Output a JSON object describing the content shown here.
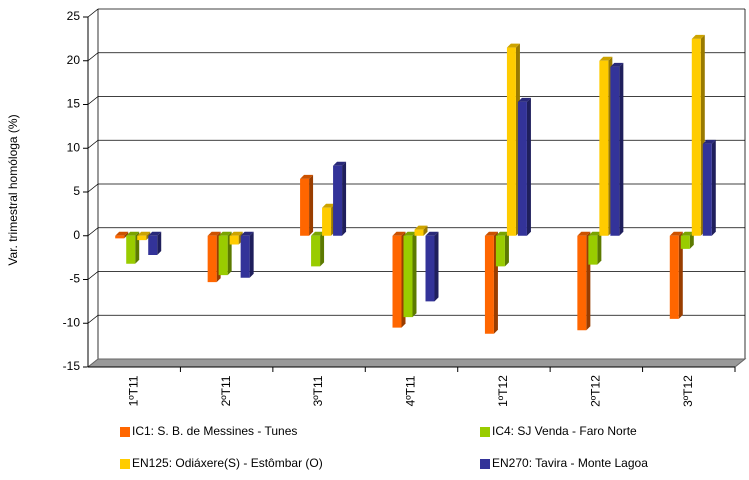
{
  "chart_data": {
    "type": "bar",
    "y_label": "Var. trimestral homóloga (%)",
    "categories": [
      "1ºT11",
      "2ºT11",
      "3ºT11",
      "4ºT11",
      "1ºT12",
      "2ºT12",
      "3ºT12"
    ],
    "series": [
      {
        "name": "IC1: S. B. de Messines - Tunes",
        "color": "#ff6600",
        "values": [
          -0.3,
          -5.3,
          6.5,
          -10.5,
          -11.2,
          -10.8,
          -9.5
        ]
      },
      {
        "name": "IC4: SJ Venda - Faro Norte",
        "color": "#99cc00",
        "values": [
          -3.2,
          -4.5,
          -3.5,
          -9.3,
          -3.5,
          -3.3,
          -1.5
        ]
      },
      {
        "name": "EN125: Odiáxere(S) - Estômbar (O)",
        "color": "#ffcc00",
        "values": [
          -0.5,
          -1.0,
          3.2,
          0.7,
          21.5,
          20.0,
          22.5
        ]
      },
      {
        "name": "EN270: Tavira - Monte Lagoa",
        "color": "#333399",
        "values": [
          -2.2,
          -4.8,
          8.0,
          -7.5,
          15.3,
          19.3,
          10.5
        ]
      }
    ],
    "ylim": [
      -15,
      25
    ],
    "yticks": [
      -15,
      -10,
      -5,
      0,
      5,
      10,
      15,
      20,
      25
    ],
    "grid": true
  }
}
